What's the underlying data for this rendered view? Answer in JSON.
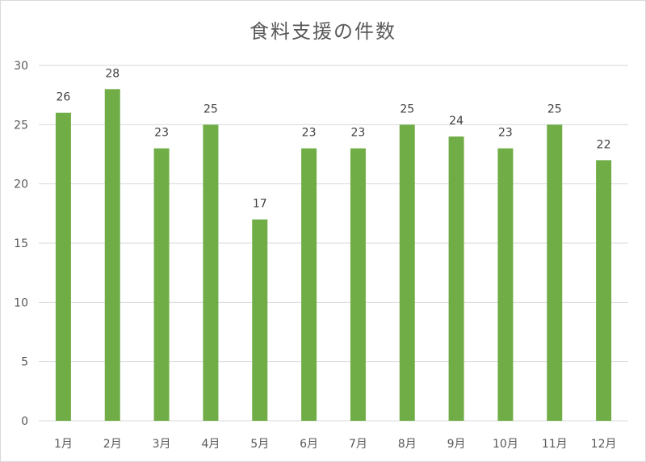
{
  "chart_data": {
    "type": "bar",
    "title": "食料支援の件数",
    "categories": [
      "1月",
      "2月",
      "3月",
      "4月",
      "5月",
      "6月",
      "7月",
      "8月",
      "9月",
      "10月",
      "11月",
      "12月"
    ],
    "values": [
      26,
      28,
      23,
      25,
      17,
      23,
      23,
      25,
      24,
      23,
      25,
      22
    ],
    "ylim": [
      0,
      30
    ],
    "yticks": [
      0,
      5,
      10,
      15,
      20,
      25,
      30
    ],
    "grid": true,
    "data_labels": true,
    "bar_color": "#70ad47"
  }
}
